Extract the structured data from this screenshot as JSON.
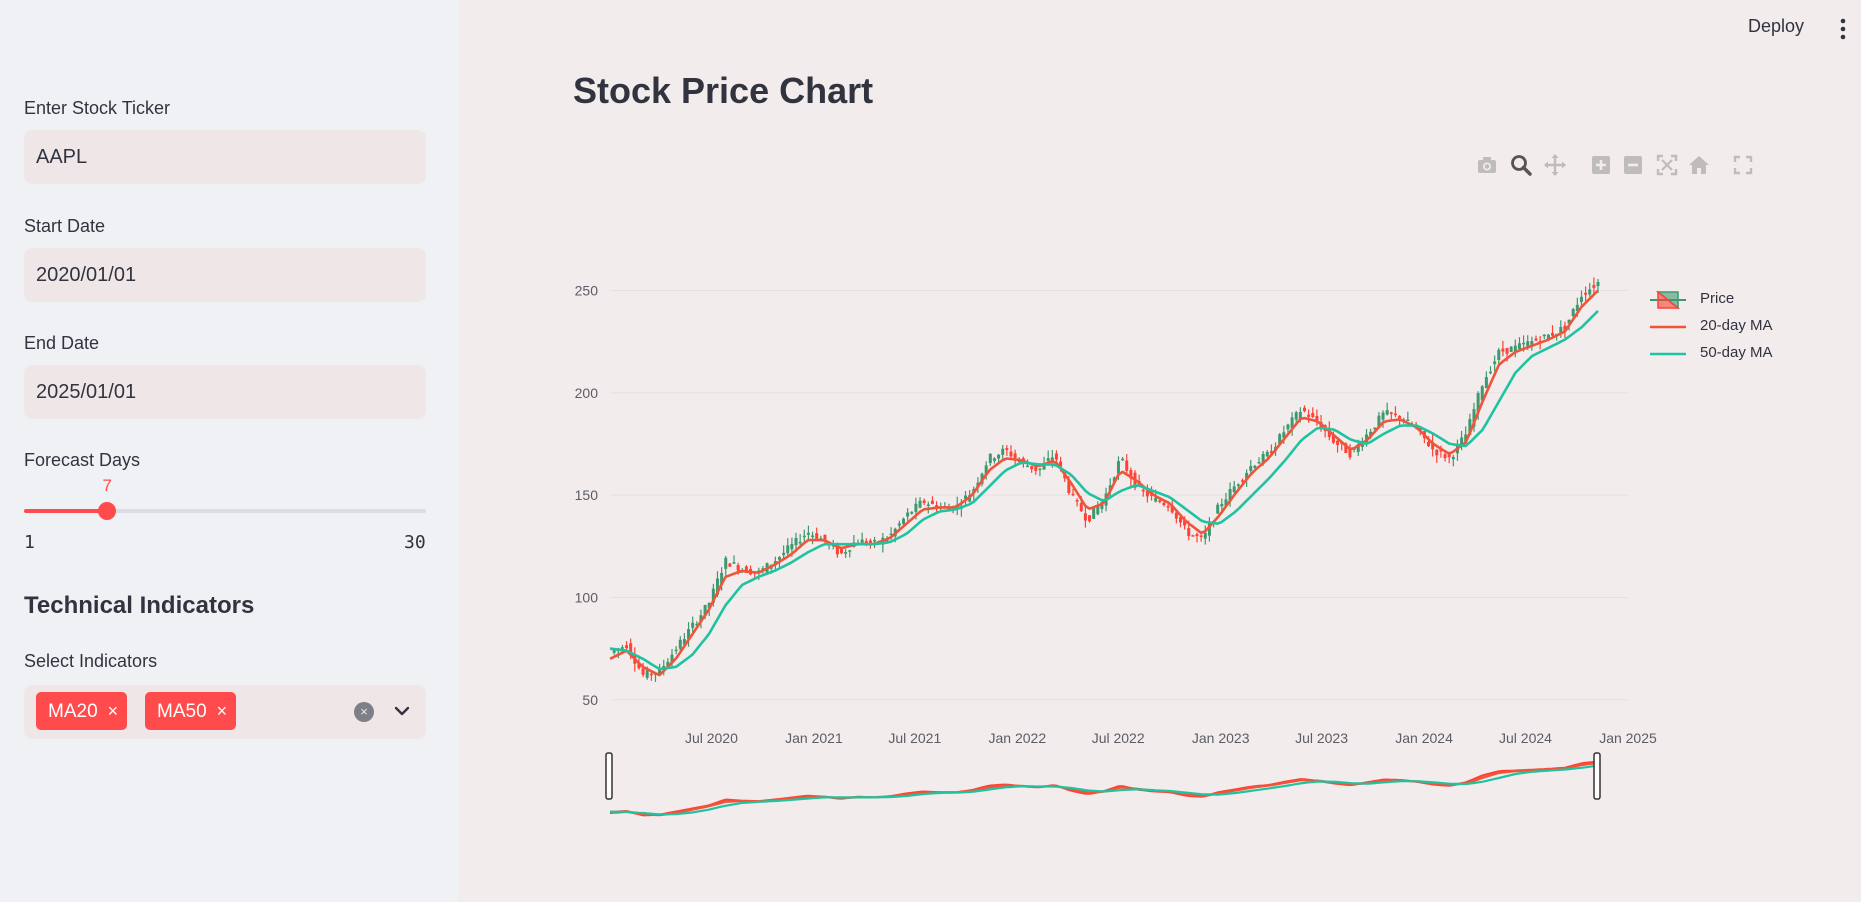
{
  "sidebar": {
    "ticker_label": "Enter Stock Ticker",
    "ticker_value": "AAPL",
    "start_label": "Start Date",
    "start_value": "2020/01/01",
    "end_label": "End Date",
    "end_value": "2025/01/01",
    "forecast_label": "Forecast Days",
    "forecast_value": 7,
    "forecast_value_text": "7",
    "forecast_min": 1,
    "forecast_max": 30,
    "forecast_min_text": "1",
    "forecast_max_text": "30",
    "tech_heading": "Technical Indicators",
    "indicators_label": "Select Indicators",
    "chips": [
      "MA20",
      "MA50"
    ],
    "chip_close": "×",
    "clear_symbol": "×"
  },
  "header": {
    "deploy_label": "Deploy"
  },
  "main": {
    "title": "Stock Price Chart",
    "modebar_icons": [
      "camera-icon",
      "zoom-icon",
      "pan-icon",
      "zoom-in-icon",
      "zoom-out-icon",
      "autoscale-icon",
      "home-icon",
      "fullscreen-icon"
    ]
  },
  "colors": {
    "accent": "#ff4b4b",
    "increasing": "#3d9970",
    "decreasing": "#ff4136",
    "ma20": "#ef553b",
    "ma50": "#1fc3a0"
  },
  "chart_data": {
    "type": "line",
    "title": "",
    "xlabel": "",
    "ylabel": "",
    "xlim": [
      "2020-01-01",
      "2025-01-01"
    ],
    "ylim": [
      45,
      260
    ],
    "yticks": [
      50,
      100,
      150,
      200,
      250
    ],
    "ytick_labels": [
      "50",
      "100",
      "150",
      "200",
      "250"
    ],
    "xticks": [
      "2020-07-01",
      "2021-01-01",
      "2021-07-01",
      "2022-01-01",
      "2022-07-01",
      "2023-01-01",
      "2023-07-01",
      "2024-01-01",
      "2024-07-01",
      "2025-01-01"
    ],
    "xtick_labels": [
      "Jul 2020",
      "Jan 2021",
      "Jul 2021",
      "Jan 2022",
      "Jul 2022",
      "Jan 2023",
      "Jul 2023",
      "Jan 2024",
      "Jul 2024",
      "Jan 2025"
    ],
    "grid": true,
    "legend_position": "top-right",
    "rangeslider": true,
    "x": [
      "2020-01-01",
      "2020-02-01",
      "2020-03-01",
      "2020-04-01",
      "2020-05-01",
      "2020-06-01",
      "2020-07-01",
      "2020-08-01",
      "2020-09-01",
      "2020-10-01",
      "2020-11-01",
      "2020-12-01",
      "2021-01-01",
      "2021-02-01",
      "2021-03-01",
      "2021-04-01",
      "2021-05-01",
      "2021-06-01",
      "2021-07-01",
      "2021-08-01",
      "2021-09-01",
      "2021-10-01",
      "2021-11-01",
      "2021-12-01",
      "2022-01-01",
      "2022-02-01",
      "2022-03-01",
      "2022-04-01",
      "2022-05-01",
      "2022-06-01",
      "2022-07-01",
      "2022-08-01",
      "2022-09-01",
      "2022-10-01",
      "2022-11-01",
      "2022-12-01",
      "2023-01-01",
      "2023-02-01",
      "2023-03-01",
      "2023-04-01",
      "2023-05-01",
      "2023-06-01",
      "2023-07-01",
      "2023-08-01",
      "2023-09-01",
      "2023-10-01",
      "2023-11-01",
      "2023-12-01",
      "2024-01-01",
      "2024-02-01",
      "2024-03-01",
      "2024-04-01",
      "2024-05-01",
      "2024-06-01",
      "2024-07-01",
      "2024-08-01",
      "2024-09-01",
      "2024-10-01",
      "2024-11-01",
      "2024-12-01",
      "2024-12-31"
    ],
    "series": [
      {
        "name": "Price",
        "kind": "candlestick",
        "values": [
          73,
          77,
          62,
          64,
          75,
          86,
          97,
          118,
          114,
          112,
          118,
          125,
          132,
          128,
          121,
          128,
          126,
          130,
          140,
          147,
          144,
          144,
          152,
          168,
          172,
          166,
          162,
          170,
          150,
          138,
          148,
          168,
          154,
          148,
          145,
          132,
          128,
          145,
          155,
          165,
          170,
          182,
          192,
          185,
          176,
          170,
          180,
          190,
          188,
          182,
          172,
          168,
          180,
          205,
          220,
          222,
          225,
          228,
          232,
          248,
          254
        ]
      },
      {
        "name": "20-day MA",
        "kind": "line",
        "values": [
          70,
          74,
          66,
          62,
          70,
          82,
          94,
          110,
          113,
          112,
          116,
          121,
          128,
          128,
          124,
          126,
          126,
          129,
          136,
          143,
          144,
          144,
          150,
          162,
          168,
          167,
          164,
          167,
          156,
          143,
          146,
          162,
          157,
          150,
          146,
          137,
          131,
          140,
          151,
          161,
          168,
          178,
          188,
          186,
          179,
          172,
          177,
          186,
          187,
          183,
          175,
          170,
          176,
          196,
          214,
          220,
          223,
          226,
          230,
          242,
          250
        ]
      },
      {
        "name": "50-day MA",
        "kind": "line",
        "values": [
          75,
          74,
          70,
          65,
          66,
          72,
          82,
          96,
          106,
          110,
          113,
          117,
          122,
          126,
          126,
          126,
          126,
          127,
          131,
          138,
          142,
          143,
          146,
          154,
          162,
          166,
          165,
          165,
          160,
          151,
          147,
          152,
          155,
          152,
          149,
          143,
          137,
          136,
          142,
          150,
          158,
          167,
          177,
          183,
          182,
          177,
          175,
          180,
          184,
          184,
          180,
          175,
          174,
          182,
          196,
          210,
          218,
          222,
          226,
          232,
          240
        ]
      }
    ]
  }
}
